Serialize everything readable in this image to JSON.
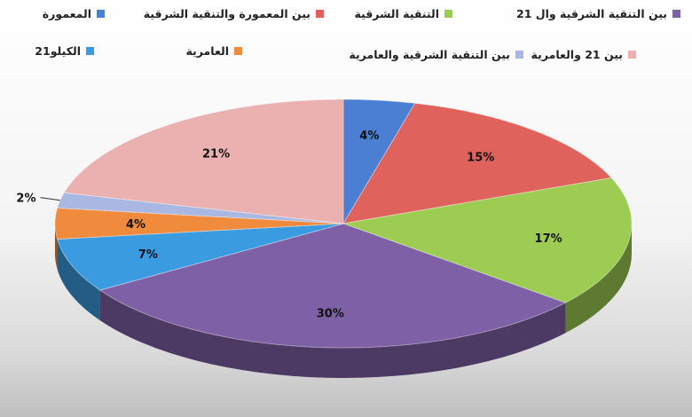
{
  "chart_data": {
    "type": "pie",
    "title": "",
    "legend_placement": "top",
    "slices": [
      {
        "label": "المعمورة",
        "value": 4,
        "display": "4%",
        "color": "#4a7fd4"
      },
      {
        "label": "بين المعمورة والتنقية الشرقية",
        "value": 15,
        "display": "15%",
        "color": "#e0625c"
      },
      {
        "label": "التنقية الشرقية",
        "value": 17,
        "display": "17%",
        "color": "#9ccc52"
      },
      {
        "label": "بين التنقية الشرقية وال 21",
        "value": 30,
        "display": "30%",
        "color": "#7e60a6"
      },
      {
        "label": "الكيلو21",
        "value": 7,
        "display": "7%",
        "color": "#3b9be0"
      },
      {
        "label": "العامرية",
        "value": 4,
        "display": "4%",
        "color": "#f08a3c"
      },
      {
        "label": "بين التنقية  الشرقية والعامرية",
        "value": 2,
        "display": "2%",
        "color": "#a9b8e2"
      },
      {
        "label": "بين 21 والعامرية",
        "value": 21,
        "display": "21%",
        "color": "#ebb1b0"
      }
    ]
  }
}
